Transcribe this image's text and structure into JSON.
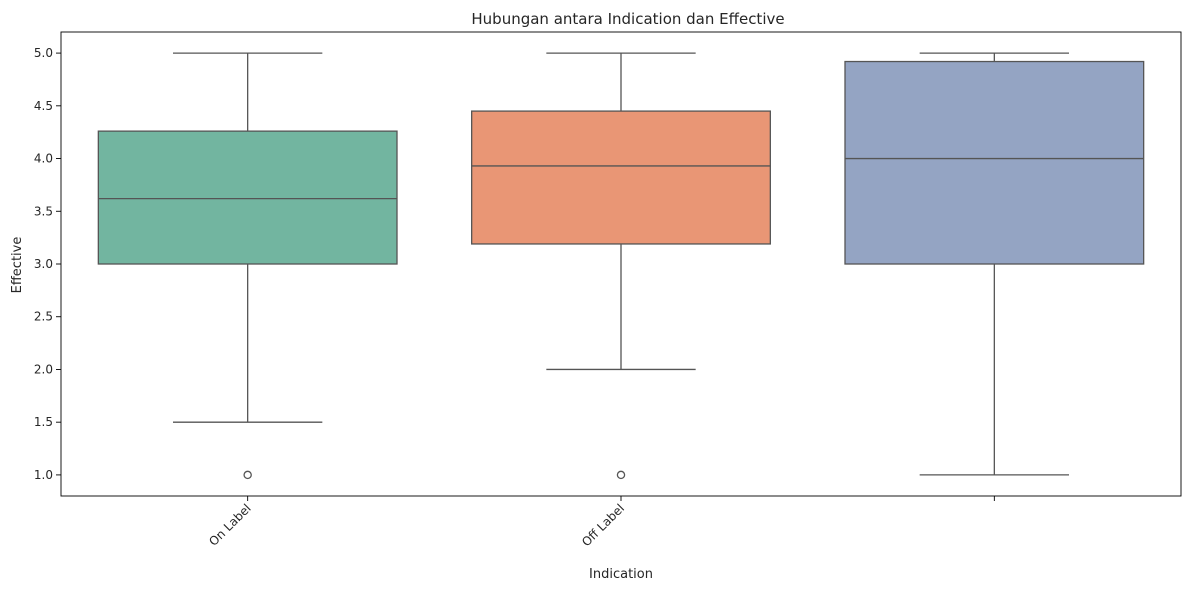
{
  "chart_data": {
    "type": "box",
    "title": "Hubungan antara Indication dan Effective",
    "xlabel": "Indication",
    "ylabel": "Effective",
    "ylim": [
      0.8,
      5.2
    ],
    "yticks": [
      1.0,
      1.5,
      2.0,
      2.5,
      3.0,
      3.5,
      4.0,
      4.5,
      5.0
    ],
    "ytick_labels": [
      "1.0",
      "1.5",
      "2.0",
      "2.5",
      "3.0",
      "3.5",
      "4.0",
      "4.5",
      "5.0"
    ],
    "grid": false,
    "legend": "none",
    "categories": [
      "On Label",
      "Off Label",
      ""
    ],
    "boxes": [
      {
        "category": "On Label",
        "whisker_low": 1.5,
        "q1": 3.0,
        "median": 3.62,
        "q3": 4.26,
        "whisker_high": 5.0,
        "outliers": [
          1.0
        ],
        "color": "#72b5a0"
      },
      {
        "category": "Off Label",
        "whisker_low": 2.0,
        "q1": 3.19,
        "median": 3.93,
        "q3": 4.45,
        "whisker_high": 5.0,
        "outliers": [
          1.0
        ],
        "color": "#e99675"
      },
      {
        "category": "",
        "whisker_low": 1.0,
        "q1": 3.0,
        "median": 4.0,
        "q3": 4.92,
        "whisker_high": 5.0,
        "outliers": [],
        "color": "#94a4c3"
      }
    ],
    "line_color": "#555555",
    "spine_color": "#000000"
  }
}
